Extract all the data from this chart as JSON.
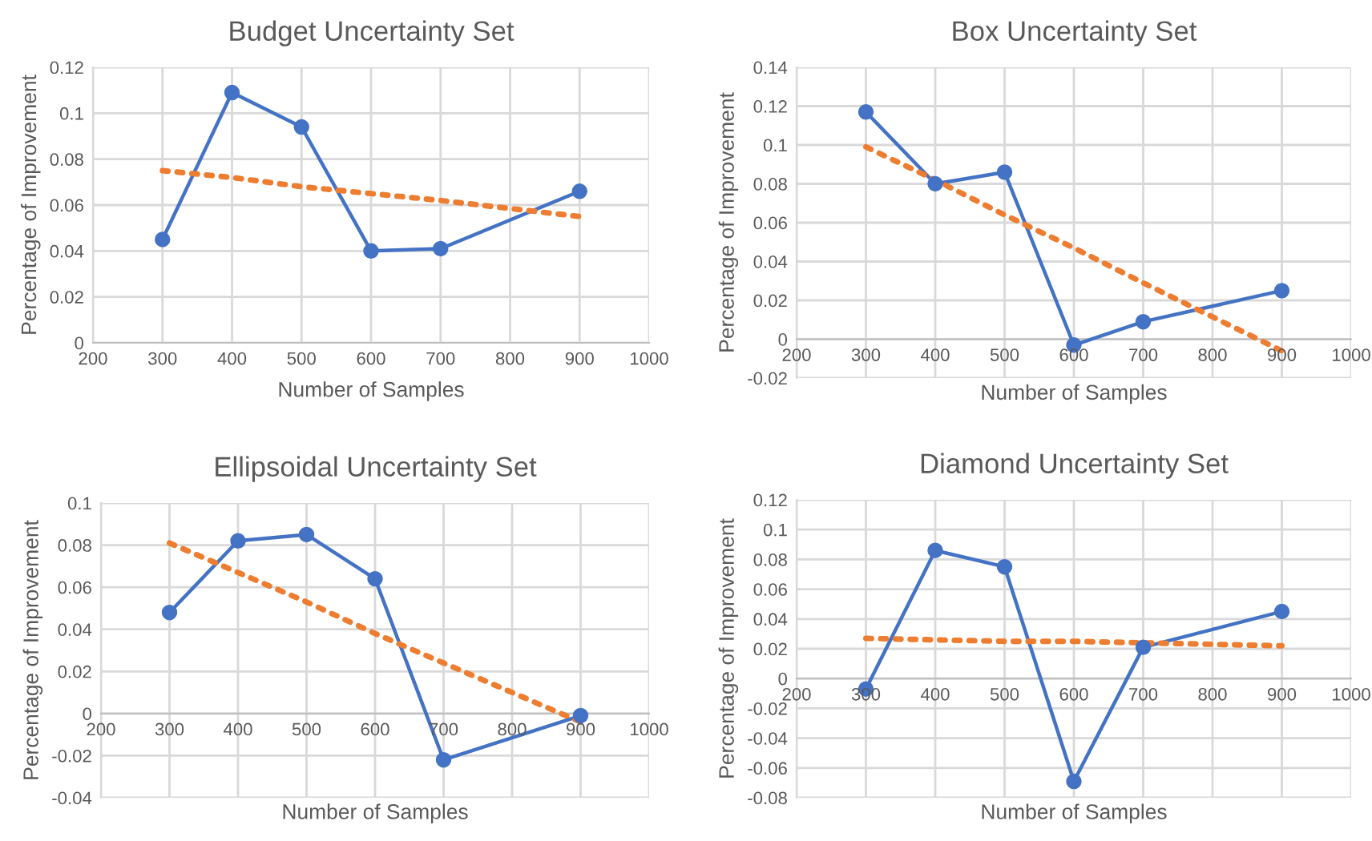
{
  "chart_data": [
    {
      "type": "line",
      "title": "Budget Uncertainty Set",
      "xlabel": "Number of Samples",
      "ylabel": "Percentage of Improvement",
      "x": [
        300,
        400,
        500,
        600,
        700,
        900
      ],
      "xlim": [
        200,
        1000
      ],
      "xticks": [
        200,
        300,
        400,
        500,
        600,
        700,
        800,
        900,
        1000
      ],
      "ylim": [
        0,
        0.12
      ],
      "yticks": [
        0,
        0.02,
        0.04,
        0.06,
        0.08,
        0.1,
        0.12
      ],
      "grid": true,
      "series": [
        {
          "color": "#4472c4",
          "marker": "circle",
          "line_style": "solid",
          "values": [
            0.045,
            0.109,
            0.094,
            0.04,
            0.041,
            0.066
          ]
        },
        {
          "color": "#ed7d31",
          "marker": "none",
          "line_style": "dotted",
          "values": [
            0.075,
            0.072,
            0.068,
            0.065,
            0.062,
            0.055
          ]
        }
      ]
    },
    {
      "type": "line",
      "title": "Box Uncertainty Set",
      "xlabel": "Number of Samples",
      "ylabel": "Percentage of Improvement",
      "x": [
        300,
        400,
        500,
        600,
        700,
        900
      ],
      "xlim": [
        200,
        1000
      ],
      "xticks": [
        200,
        300,
        400,
        500,
        600,
        700,
        800,
        900,
        1000
      ],
      "ylim": [
        -0.02,
        0.14
      ],
      "yticks": [
        -0.02,
        0,
        0.02,
        0.04,
        0.06,
        0.08,
        0.1,
        0.12,
        0.14
      ],
      "grid": true,
      "series": [
        {
          "color": "#4472c4",
          "marker": "circle",
          "line_style": "solid",
          "values": [
            0.117,
            0.08,
            0.086,
            -0.003,
            0.009,
            0.025
          ]
        },
        {
          "color": "#ed7d31",
          "marker": "none",
          "line_style": "dotted",
          "values": [
            0.099,
            0.082,
            0.064,
            0.047,
            0.029,
            -0.006
          ]
        }
      ]
    },
    {
      "type": "line",
      "title": "Ellipsoidal Uncertainty Set",
      "xlabel": "Number of Samples",
      "ylabel": "Percentage of Improvement",
      "x": [
        300,
        400,
        500,
        600,
        700,
        900
      ],
      "xlim": [
        200,
        1000
      ],
      "xticks": [
        200,
        300,
        400,
        500,
        600,
        700,
        800,
        900,
        1000
      ],
      "ylim": [
        -0.04,
        0.1
      ],
      "yticks": [
        -0.04,
        -0.02,
        0,
        0.02,
        0.04,
        0.06,
        0.08,
        0.1
      ],
      "grid": true,
      "series": [
        {
          "color": "#4472c4",
          "marker": "circle",
          "line_style": "solid",
          "values": [
            0.048,
            0.082,
            0.085,
            0.064,
            -0.022,
            -0.001
          ]
        },
        {
          "color": "#ed7d31",
          "marker": "none",
          "line_style": "dotted",
          "values": [
            0.081,
            0.067,
            0.053,
            0.038,
            0.024,
            -0.004
          ]
        }
      ]
    },
    {
      "type": "line",
      "title": "Diamond Uncertainty Set",
      "xlabel": "Number of Samples",
      "ylabel": "Percentage of Improvement",
      "x": [
        300,
        400,
        500,
        600,
        700,
        900
      ],
      "xlim": [
        200,
        1000
      ],
      "xticks": [
        200,
        300,
        400,
        500,
        600,
        700,
        800,
        900,
        1000
      ],
      "ylim": [
        -0.08,
        0.12
      ],
      "yticks": [
        -0.08,
        -0.06,
        -0.04,
        -0.02,
        0,
        0.02,
        0.04,
        0.06,
        0.08,
        0.1,
        0.12
      ],
      "grid": true,
      "series": [
        {
          "color": "#4472c4",
          "marker": "circle",
          "line_style": "solid",
          "values": [
            -0.007,
            0.086,
            0.075,
            -0.069,
            0.021,
            0.045
          ]
        },
        {
          "color": "#ed7d31",
          "marker": "none",
          "line_style": "dotted",
          "values": [
            0.027,
            0.026,
            0.025,
            0.025,
            0.024,
            0.022
          ]
        }
      ]
    }
  ]
}
